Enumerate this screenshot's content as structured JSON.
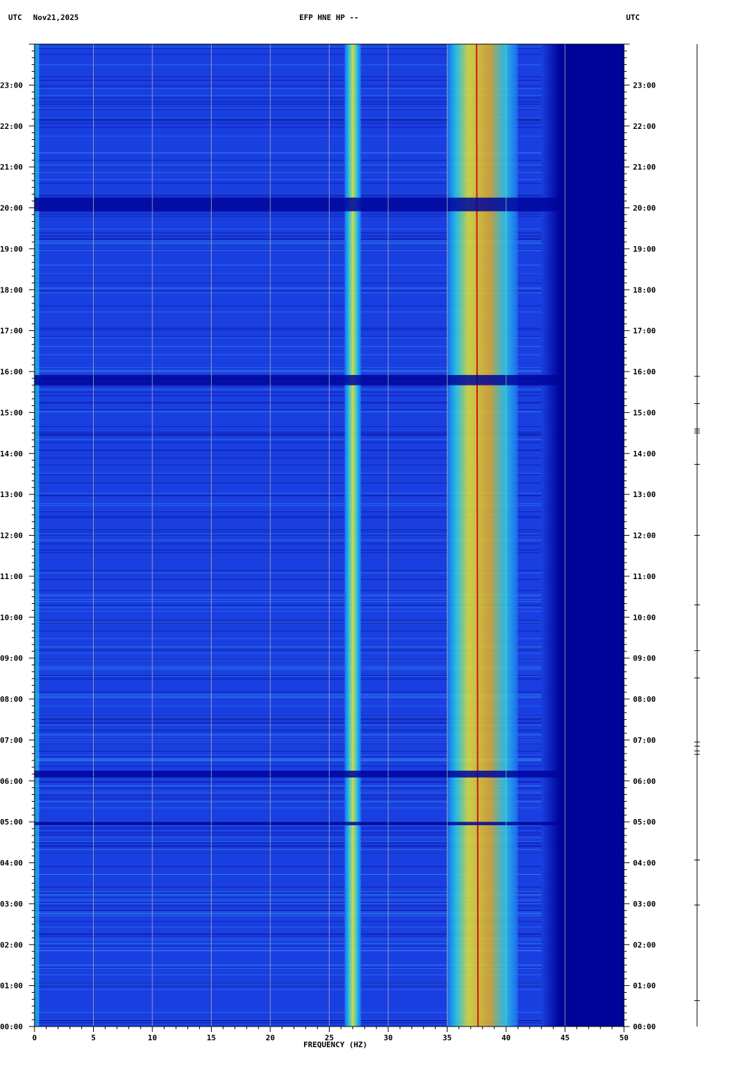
{
  "header": {
    "left_label": "UTC",
    "date": "Nov21,2025",
    "title": "EFP HNE HP --",
    "right_label": "UTC"
  },
  "chart_data": {
    "type": "heatmap",
    "title": "EFP HNE HP --",
    "xlabel": "FREQUENCY (HZ)",
    "ylabel": "UTC",
    "xlim": [
      0,
      50
    ],
    "x_ticks": [
      "0",
      "5",
      "10",
      "15",
      "20",
      "25",
      "30",
      "35",
      "40",
      "45",
      "50"
    ],
    "y_ticks": [
      "00:00",
      "01:00",
      "02:00",
      "03:00",
      "04:00",
      "05:00",
      "06:00",
      "07:00",
      "08:00",
      "09:00",
      "10:00",
      "11:00",
      "12:00",
      "13:00",
      "14:00",
      "15:00",
      "16:00",
      "17:00",
      "18:00",
      "19:00",
      "20:00",
      "21:00",
      "22:00",
      "23:00"
    ],
    "grid": true,
    "colors": {
      "background": "#1a3fe0",
      "quiet": "#00059a",
      "low": "#1e6cf0",
      "mid": "#25d0e8",
      "high": "#e8e830",
      "peak": "#d21010",
      "grid": "#b0b0b0"
    },
    "bands": [
      {
        "name": "narrow band ~27 Hz",
        "freq": 27,
        "intensity": "mid"
      },
      {
        "name": "broad band ~35-41 Hz",
        "freq_range": [
          35,
          41
        ],
        "intensity": "high"
      },
      {
        "name": "spectral line ~37.5 Hz",
        "freq": 37.5,
        "intensity": "peak"
      }
    ],
    "quiet_hours": [
      "19:55-20:15",
      "15:40-15:55",
      "06:05-06:15",
      "04:55-05:00"
    ],
    "event_markers_utc": [
      "15:53",
      "15:13",
      "14:36",
      "14:33",
      "14:30",
      "13:44",
      "12:00",
      "10:18",
      "09:11",
      "08:31",
      "06:57",
      "06:51",
      "06:44",
      "06:39",
      "04:04",
      "02:58",
      "00:38"
    ]
  }
}
